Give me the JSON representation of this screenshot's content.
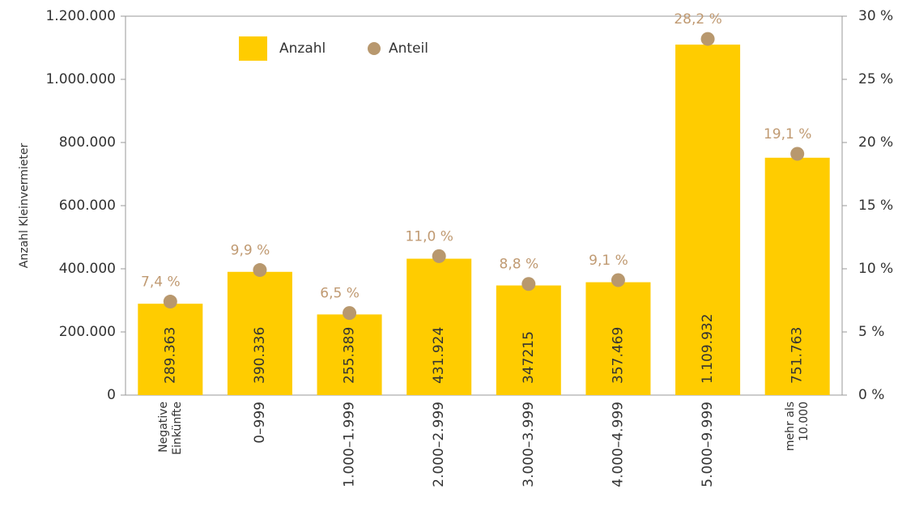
{
  "chart_data": {
    "type": "bar",
    "y_label": "Anzahl Kleinvermieter",
    "legend": {
      "bar": "Anzahl",
      "dot": "Anteil"
    },
    "categories": [
      "Negative Einkünfte",
      "0–999",
      "1.000–1.999",
      "2.000–2.999",
      "3.000–3.999",
      "4.000–4.999",
      "5.000–9.999",
      "mehr als 10.000"
    ],
    "series": [
      {
        "name": "Anzahl",
        "type": "bar",
        "color": "#ffcc00",
        "values": [
          289363,
          390336,
          255389,
          431924,
          347215,
          357469,
          1109932,
          751763
        ],
        "value_labels": [
          "289.363",
          "390.336",
          "255.389",
          "431.924",
          "347215",
          "357.469",
          "1.109.932",
          "751.763"
        ]
      },
      {
        "name": "Anteil",
        "type": "scatter",
        "axis": "y2",
        "color": "#b8986e",
        "values": [
          7.4,
          9.9,
          6.5,
          11.0,
          8.8,
          9.1,
          28.2,
          19.1
        ],
        "value_labels": [
          "7,4 %",
          "9,9 %",
          "6,5 %",
          "11,0 %",
          "8,8 %",
          "9,1 %",
          "28,2 %",
          "19,1 %"
        ]
      }
    ],
    "ylim": [
      0,
      1200000
    ],
    "yticks": [
      0,
      {
        "value": 200000,
        "label": "200.000"
      },
      {
        "value": 400000,
        "label": "400.000"
      },
      {
        "value": 600000,
        "label": "600.000"
      },
      {
        "value": 800000,
        "label": "800.000"
      },
      {
        "value": 1000000,
        "label": "1.000.000"
      },
      {
        "value": 1200000,
        "label": "1.200.000"
      }
    ],
    "y2lim": [
      0,
      30
    ],
    "y2ticks": [
      {
        "value": 0,
        "label": "0 %"
      },
      {
        "value": 5,
        "label": "5 %"
      },
      {
        "value": 10,
        "label": "10 %"
      },
      {
        "value": 15,
        "label": "15 %"
      },
      {
        "value": 20,
        "label": "20 %"
      },
      {
        "value": 25,
        "label": "25 %"
      },
      {
        "value": 30,
        "label": "30 %"
      }
    ]
  }
}
